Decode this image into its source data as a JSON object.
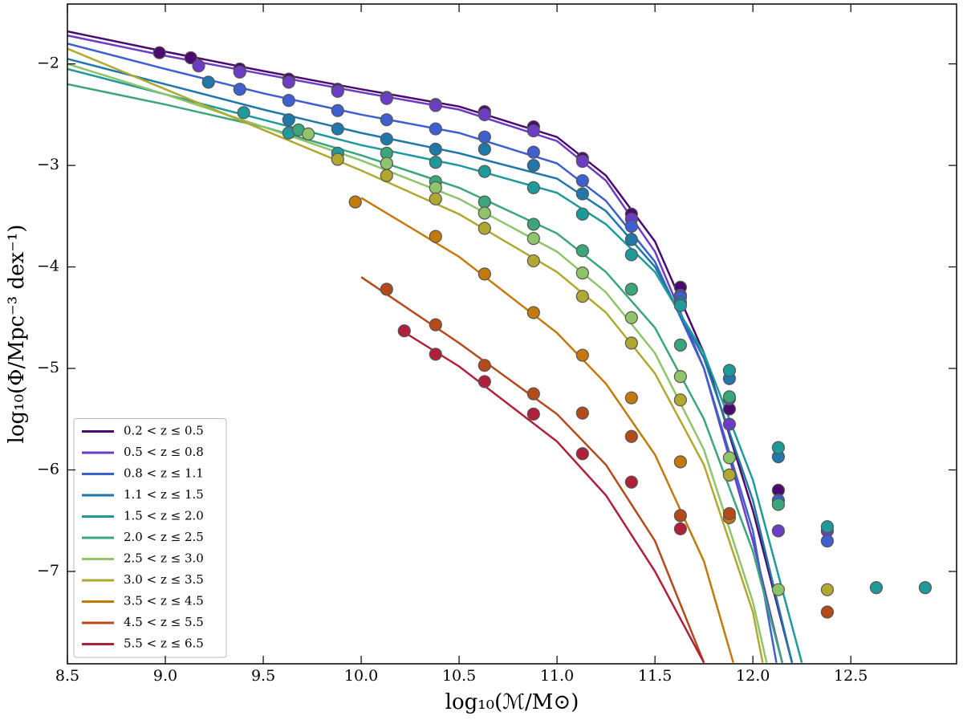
{
  "chart_data": {
    "type": "scatter",
    "x_label": "log₁₀(ℳ/M⊙)",
    "y_label": "log₁₀(Φ/Mpc⁻³ dex⁻¹)",
    "xlim": [
      8.5,
      13.04
    ],
    "ylim": [
      -7.91,
      -1.41
    ],
    "xticks": [
      8.5,
      {
        "value": 9,
        "label": "9.0"
      },
      9.5,
      {
        "value": 10,
        "label": "10.0"
      },
      10.5,
      {
        "value": 11,
        "label": "11.0"
      },
      11.5,
      {
        "value": 12,
        "label": "12.0"
      },
      12.5
    ],
    "yticks": [
      {
        "value": -2,
        "label": "−2"
      },
      {
        "value": -3,
        "label": "−3"
      },
      {
        "value": -4,
        "label": "−4"
      },
      {
        "value": -5,
        "label": "−5"
      },
      {
        "value": -6,
        "label": "−6"
      },
      {
        "value": -7,
        "label": "−7"
      }
    ],
    "legend": "lower left",
    "series": [
      {
        "name": "0.2 < z ≤ 0.5",
        "color": "#4b0a6e",
        "x": [
          8.97,
          9.13,
          9.38,
          9.63,
          9.88,
          10.13,
          10.38,
          10.63,
          10.88,
          11.13,
          11.38,
          11.63,
          11.88,
          12.13
        ],
        "values": [
          -1.89,
          -1.94,
          -2.05,
          -2.15,
          -2.25,
          -2.33,
          -2.4,
          -2.47,
          -2.62,
          -2.93,
          -3.48,
          -4.2,
          -5.4,
          -6.2
        ],
        "fit_x": [
          8.5,
          9,
          9.5,
          10,
          10.5,
          11,
          11.25,
          11.5,
          11.75,
          12,
          12.2
        ],
        "fit_values": [
          -1.68,
          -1.88,
          -2.07,
          -2.25,
          -2.42,
          -2.72,
          -3.1,
          -3.75,
          -4.85,
          -6.4,
          -7.9
        ]
      },
      {
        "name": "0.5 < z ≤ 0.8",
        "color": "#6a3dc4",
        "x": [
          9.17,
          9.38,
          9.63,
          9.88,
          10.13,
          10.38,
          10.63,
          10.88,
          11.13,
          11.38,
          11.63,
          11.88,
          12.13,
          12.38
        ],
        "values": [
          -2.02,
          -2.08,
          -2.18,
          -2.27,
          -2.34,
          -2.41,
          -2.5,
          -2.66,
          -2.96,
          -3.53,
          -4.28,
          -5.55,
          -6.6,
          -6.6
        ],
        "fit_x": [
          8.5,
          9,
          9.5,
          10,
          10.5,
          11,
          11.25,
          11.5,
          11.75,
          12,
          12.15
        ],
        "fit_values": [
          -1.72,
          -1.92,
          -2.1,
          -2.28,
          -2.45,
          -2.76,
          -3.15,
          -3.85,
          -5.0,
          -6.7,
          -7.9
        ]
      },
      {
        "name": "0.8 < z ≤ 1.1",
        "color": "#3e5fcf",
        "x": [
          9.38,
          9.63,
          9.88,
          10.13,
          10.38,
          10.63,
          10.88,
          11.13,
          11.38,
          11.63,
          11.88,
          12.13,
          12.38
        ],
        "values": [
          -2.25,
          -2.36,
          -2.46,
          -2.55,
          -2.64,
          -2.72,
          -2.87,
          -3.15,
          -3.6,
          -4.3,
          -5.3,
          -6.3,
          -6.7
        ],
        "fit_x": [
          8.5,
          9,
          9.5,
          10,
          10.5,
          11,
          11.25,
          11.5,
          11.75,
          12,
          12.12
        ],
        "fit_values": [
          -1.8,
          -2.05,
          -2.29,
          -2.5,
          -2.68,
          -2.98,
          -3.35,
          -3.95,
          -5.0,
          -6.6,
          -7.9
        ]
      },
      {
        "name": "1.1 < z ≤ 1.5",
        "color": "#1f78a8",
        "x": [
          9.22,
          9.63,
          9.88,
          10.13,
          10.38,
          10.63,
          10.88,
          11.13,
          11.38,
          11.63,
          11.88,
          12.13
        ],
        "values": [
          -2.18,
          -2.55,
          -2.64,
          -2.74,
          -2.84,
          -2.84,
          -3.0,
          -3.28,
          -3.73,
          -4.35,
          -5.1,
          -5.87
        ],
        "fit_x": [
          8.5,
          9,
          9.5,
          10,
          10.5,
          11,
          11.25,
          11.5,
          11.75,
          12,
          12.2
        ],
        "fit_values": [
          -1.95,
          -2.2,
          -2.45,
          -2.68,
          -2.88,
          -3.13,
          -3.45,
          -4.0,
          -4.9,
          -6.3,
          -7.9
        ]
      },
      {
        "name": "1.5 < z ≤ 2.0",
        "color": "#1f9a9a",
        "x": [
          9.4,
          9.63,
          9.88,
          10.13,
          10.38,
          10.63,
          10.88,
          11.13,
          11.38,
          11.63,
          11.88,
          12.13,
          12.38,
          12.63,
          12.88
        ],
        "values": [
          -2.48,
          -2.68,
          -2.88,
          -2.98,
          -2.97,
          -3.06,
          -3.22,
          -3.48,
          -3.88,
          -4.38,
          -5.02,
          -5.78,
          -6.56,
          -7.16,
          -7.16
        ],
        "fit_x": [
          8.5,
          9,
          9.5,
          10,
          10.5,
          11,
          11.25,
          11.5,
          11.75,
          12,
          12.25
        ],
        "fit_values": [
          -2.05,
          -2.3,
          -2.55,
          -2.8,
          -3.0,
          -3.27,
          -3.58,
          -4.05,
          -4.85,
          -6.1,
          -7.9
        ]
      },
      {
        "name": "2.0 < z ≤ 2.5",
        "color": "#3aa67a",
        "x": [
          9.68,
          10.13,
          10.38,
          10.63,
          10.88,
          11.13,
          11.38,
          11.63,
          11.88,
          12.13
        ],
        "values": [
          -2.65,
          -2.88,
          -3.16,
          -3.36,
          -3.58,
          -3.84,
          -4.22,
          -4.77,
          -5.28,
          -6.34
        ],
        "fit_x": [
          8.5,
          9,
          9.5,
          10,
          10.5,
          11,
          11.25,
          11.5,
          11.75,
          12,
          12.15
        ],
        "fit_values": [
          -2.2,
          -2.4,
          -2.62,
          -2.9,
          -3.22,
          -3.67,
          -4.05,
          -4.6,
          -5.5,
          -6.8,
          -7.9
        ]
      },
      {
        "name": "2.5 < z ≤ 3.0",
        "color": "#8fc46a",
        "x": [
          9.73,
          10.13,
          10.38,
          10.63,
          10.88,
          11.13,
          11.38,
          11.63,
          11.88,
          12.13
        ],
        "values": [
          -2.69,
          -2.98,
          -3.22,
          -3.47,
          -3.72,
          -4.06,
          -4.5,
          -5.08,
          -5.88,
          -7.18
        ],
        "fit_x": [
          8.5,
          9,
          9.5,
          10,
          10.5,
          11,
          11.25,
          11.5,
          11.75,
          12,
          12.07
        ],
        "fit_values": [
          -2.0,
          -2.3,
          -2.62,
          -2.95,
          -3.33,
          -3.85,
          -4.25,
          -4.85,
          -5.8,
          -7.3,
          -7.9
        ]
      },
      {
        "name": "3.0 < z ≤ 3.5",
        "color": "#b0a830",
        "x": [
          9.88,
          10.13,
          10.38,
          10.63,
          10.88,
          11.13,
          11.38,
          11.63,
          11.88,
          12.38
        ],
        "values": [
          -2.94,
          -3.1,
          -3.33,
          -3.62,
          -3.94,
          -4.29,
          -4.75,
          -5.31,
          -6.05,
          -7.18
        ],
        "fit_x": [
          8.5,
          9,
          9.5,
          10,
          10.5,
          11,
          11.25,
          11.5,
          11.75,
          12,
          12.05
        ],
        "fit_values": [
          -1.85,
          -2.25,
          -2.65,
          -3.05,
          -3.48,
          -4.05,
          -4.45,
          -5.05,
          -5.95,
          -7.4,
          -7.9
        ]
      },
      {
        "name": "3.5 < z ≤ 4.5",
        "color": "#c47a0a",
        "x": [
          9.97,
          10.38,
          10.63,
          10.88,
          11.13,
          11.38,
          11.63,
          11.88
        ],
        "values": [
          -3.36,
          -3.7,
          -4.07,
          -4.45,
          -4.87,
          -5.29,
          -5.92,
          -6.47
        ],
        "fit_x": [
          10,
          10.5,
          11,
          11.25,
          11.5,
          11.75,
          11.9
        ],
        "fit_values": [
          -3.32,
          -3.9,
          -4.65,
          -5.15,
          -5.85,
          -6.9,
          -7.9
        ]
      },
      {
        "name": "4.5 < z ≤ 5.5",
        "color": "#b44a1a",
        "x": [
          10.13,
          10.38,
          10.63,
          10.88,
          11.13,
          11.38,
          11.63,
          11.88,
          12.38
        ],
        "values": [
          -4.22,
          -4.57,
          -4.97,
          -5.25,
          -5.44,
          -5.67,
          -6.45,
          -6.43,
          -7.4
        ],
        "fit_x": [
          10,
          10.5,
          11,
          11.25,
          11.5,
          11.75
        ],
        "fit_values": [
          -4.1,
          -4.75,
          -5.45,
          -5.95,
          -6.7,
          -7.9
        ]
      },
      {
        "name": "5.5 < z ≤ 6.5",
        "color": "#b0203a",
        "x": [
          10.22,
          10.38,
          10.63,
          10.88,
          11.13,
          11.38,
          11.63
        ],
        "values": [
          -4.63,
          -4.86,
          -5.13,
          -5.45,
          -5.84,
          -6.12,
          -6.58
        ],
        "fit_x": [
          10.2,
          10.5,
          11,
          11.25,
          11.5,
          11.75
        ],
        "fit_values": [
          -4.62,
          -4.98,
          -5.72,
          -6.25,
          -7.0,
          -7.9
        ]
      }
    ]
  }
}
